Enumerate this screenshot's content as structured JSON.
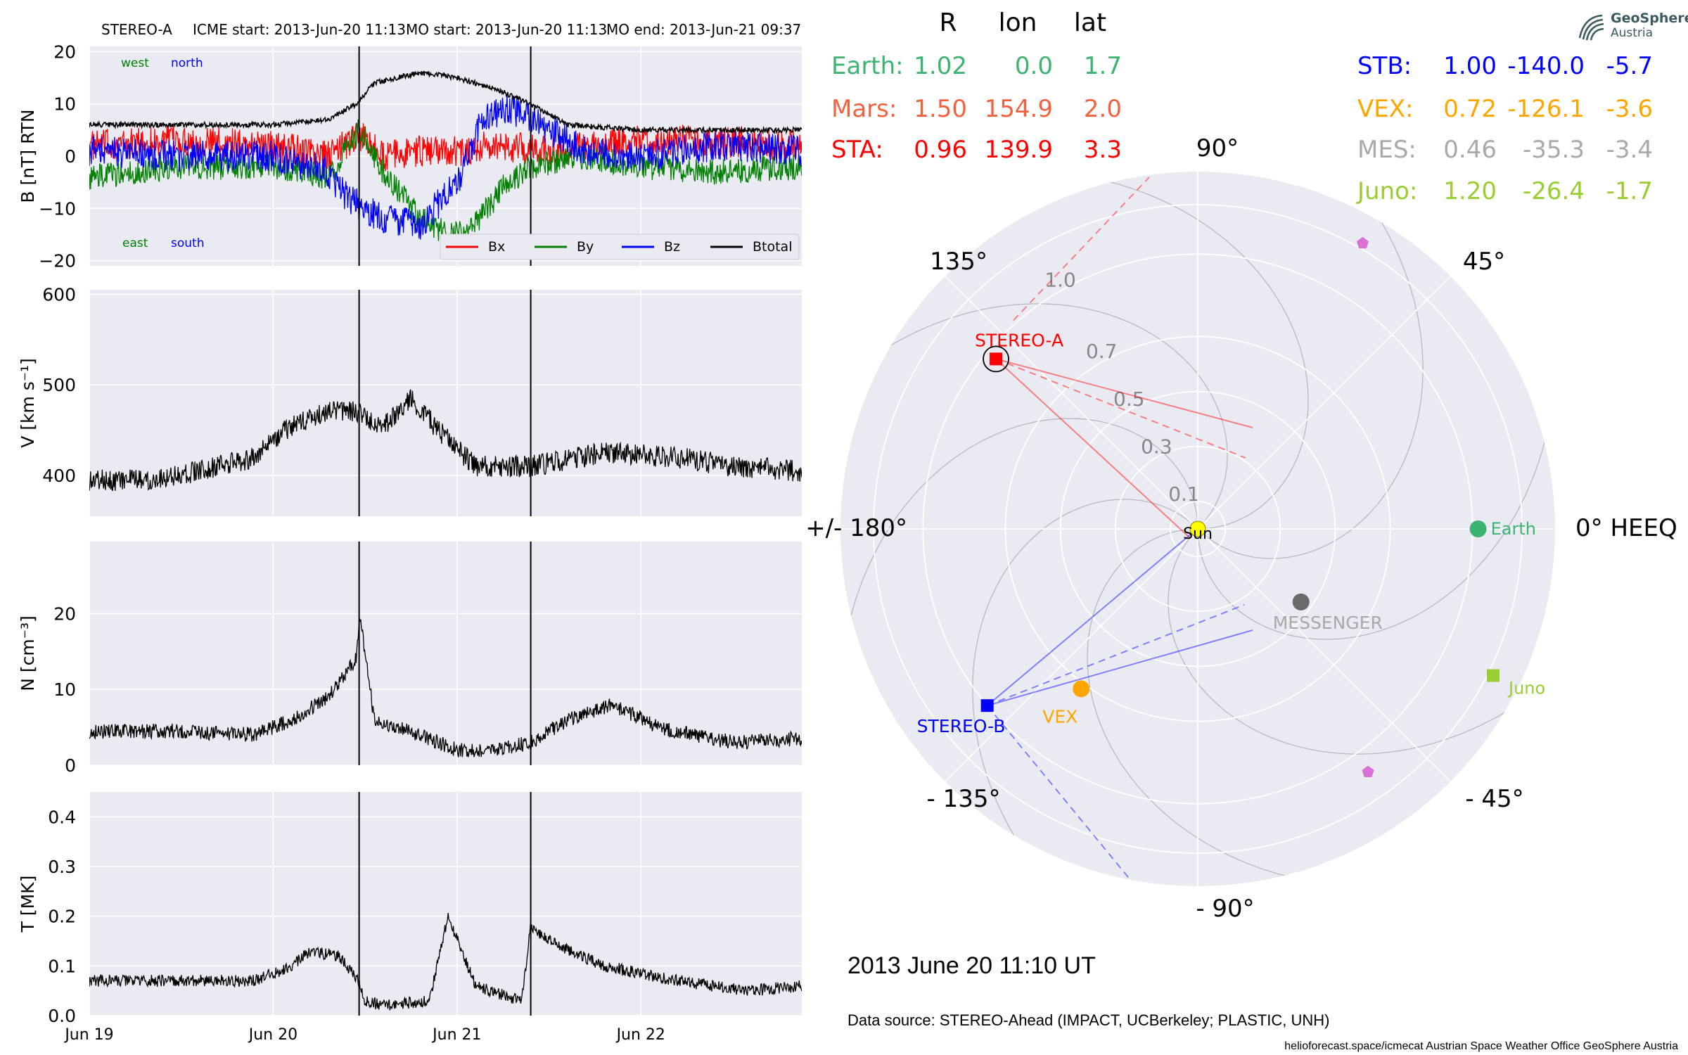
{
  "header": {
    "spacecraft": "STEREO-A",
    "icme_start": "ICME start: 2013-Jun-20 11:13",
    "mo_start": "MO start: 2013-Jun-20 11:13",
    "mo_end": "MO end: 2013-Jun-21 09:37"
  },
  "logo": {
    "line1": "GeoSphere",
    "line2": "Austria"
  },
  "positions_table": {
    "headers": [
      "R",
      "lon",
      "lat"
    ],
    "rows_left": [
      {
        "name": "Earth:",
        "r": "1.02",
        "lon": "0.0",
        "lat": "1.7",
        "color": "#3cb371"
      },
      {
        "name": "Mars:",
        "r": "1.50",
        "lon": "154.9",
        "lat": "2.0",
        "color": "#f4613f"
      },
      {
        "name": "STA:",
        "r": "0.96",
        "lon": "139.9",
        "lat": "3.3",
        "color": "#ff0000"
      }
    ],
    "rows_right": [
      {
        "name": "STB:",
        "r": "1.00",
        "lon": "-140.0",
        "lat": "-5.7",
        "color": "#0000ff"
      },
      {
        "name": "VEX:",
        "r": "0.72",
        "lon": "-126.1",
        "lat": "-3.6",
        "color": "#ffa500"
      },
      {
        "name": "MES:",
        "r": "0.46",
        "lon": "-35.3",
        "lat": "-3.4",
        "color": "#a9a9a9"
      },
      {
        "name": "Juno:",
        "r": "1.20",
        "lon": "-26.4",
        "lat": "-1.7",
        "color": "#9acd32"
      }
    ]
  },
  "date_label": "2013 June 20  11:10 UT",
  "data_source": "Data source: STEREO-Ahead (IMPACT, UCBerkeley; PLASTIC, UNH)",
  "footer": "helioforecast.space/icmecat   Austrian Space Weather Office   GeoSphere Austria",
  "colors": {
    "panel_bg": "#eaeaf2",
    "grid": "#ffffff",
    "bx": "#ff0000",
    "by": "#008000",
    "bz": "#0000ff",
    "btotal": "#000000",
    "sta": "#ff0000",
    "stb": "#0000ff",
    "earth": "#3cb371",
    "vex": "#ffa500",
    "mes": "#696969",
    "juno": "#9acd32",
    "sun": "#ffff00",
    "pentagon": "#da70d6"
  },
  "chart_data": [
    {
      "type": "line",
      "panel": "B",
      "ylabel": "B [nT] RTN",
      "ylim": [
        -21,
        21
      ],
      "yticks": [
        "20",
        "10",
        "0",
        "−10",
        "−20"
      ],
      "ytick_values": [
        20,
        10,
        0,
        -10,
        -20
      ],
      "x_range_days": [
        "2013-06-19 00:00",
        "2013-06-22 21:00"
      ],
      "xticks": [
        "Jun 19",
        "Jun 20",
        "Jun 21",
        "Jun 22"
      ],
      "corner_labels": {
        "top_left": [
          "west",
          "north"
        ],
        "bottom_left": [
          "east",
          "south"
        ]
      },
      "legend": [
        "Bx",
        "By",
        "Bz",
        "Btotal"
      ],
      "event_markers": [
        "2013-06-20 11:13",
        "2013-06-21 09:37"
      ],
      "series": [
        {
          "name": "Bx",
          "x": [
            0,
            0.5,
            1.0,
            1.3,
            1.47,
            1.6,
            1.8,
            2.0,
            2.2,
            2.5,
            2.9,
            3.3,
            3.87
          ],
          "values": [
            2,
            3,
            2,
            0,
            4,
            0,
            1,
            1,
            2,
            1,
            3,
            3,
            2
          ]
        },
        {
          "name": "By",
          "x": [
            0,
            0.5,
            1.0,
            1.3,
            1.47,
            1.6,
            1.8,
            1.95,
            2.1,
            2.25,
            2.4,
            2.7,
            3.0,
            3.4,
            3.87
          ],
          "values": [
            -4,
            -2,
            -2,
            -4,
            5,
            -3,
            -12,
            -15,
            -13,
            -6,
            -2,
            0,
            -2,
            -3,
            -2
          ]
        },
        {
          "name": "Bz",
          "x": [
            0,
            0.5,
            1.0,
            1.3,
            1.4,
            1.6,
            1.8,
            2.0,
            2.15,
            2.3,
            2.45,
            2.7,
            3.0,
            3.4,
            3.87
          ],
          "values": [
            1,
            0,
            0,
            -3,
            -8,
            -12,
            -13,
            -5,
            8,
            9,
            6,
            1,
            0,
            2,
            1
          ]
        },
        {
          "name": "Btotal",
          "x": [
            0,
            0.5,
            1.0,
            1.3,
            1.45,
            1.55,
            1.8,
            2.0,
            2.2,
            2.4,
            2.6,
            3.0,
            3.4,
            3.87
          ],
          "values": [
            6,
            6,
            6,
            7,
            10,
            14,
            16,
            15,
            13,
            10,
            6,
            5,
            5,
            5
          ]
        }
      ]
    },
    {
      "type": "line",
      "panel": "V",
      "ylabel": "V [km s⁻¹]",
      "ylim": [
        355,
        605
      ],
      "yticks": [
        "600",
        "500",
        "400"
      ],
      "ytick_values": [
        600,
        500,
        400
      ],
      "xticks": [
        "Jun 19",
        "Jun 20",
        "Jun 21",
        "Jun 22"
      ],
      "event_markers": [
        "2013-06-20 11:13",
        "2013-06-21 09:37"
      ],
      "series": [
        {
          "name": "V",
          "x": [
            0,
            0.3,
            0.6,
            0.9,
            1.0,
            1.1,
            1.3,
            1.45,
            1.6,
            1.75,
            1.9,
            2.1,
            2.4,
            2.8,
            3.2,
            3.5,
            3.87
          ],
          "values": [
            395,
            395,
            405,
            420,
            440,
            455,
            470,
            470,
            455,
            485,
            450,
            410,
            410,
            425,
            420,
            410,
            405
          ]
        }
      ]
    },
    {
      "type": "line",
      "panel": "N",
      "ylabel": "N [cm⁻³]",
      "ylim": [
        0,
        29.5
      ],
      "yticks": [
        "20",
        "10",
        "0"
      ],
      "ytick_values": [
        20,
        10,
        0
      ],
      "xticks": [
        "Jun 19",
        "Jun 20",
        "Jun 21",
        "Jun 22"
      ],
      "event_markers": [
        "2013-06-20 11:13",
        "2013-06-21 09:37"
      ],
      "series": [
        {
          "name": "N",
          "x": [
            0,
            0.5,
            0.9,
            1.1,
            1.3,
            1.45,
            1.47,
            1.55,
            1.8,
            2.0,
            2.2,
            2.4,
            2.6,
            2.85,
            3.1,
            3.5,
            3.87
          ],
          "values": [
            4.5,
            4.5,
            4,
            6,
            9,
            14,
            20,
            6,
            4,
            2,
            2,
            3,
            6,
            8,
            5,
            3,
            3.5
          ]
        }
      ]
    },
    {
      "type": "line",
      "panel": "T",
      "ylabel": "T [MK]",
      "ylim": [
        0,
        0.45
      ],
      "yticks": [
        "0.4",
        "0.3",
        "0.2",
        "0.1",
        "0.0"
      ],
      "ytick_values": [
        0.4,
        0.3,
        0.2,
        0.1,
        0.0
      ],
      "xticks": [
        "Jun 19",
        "Jun 20",
        "Jun 21",
        "Jun 22"
      ],
      "event_markers": [
        "2013-06-20 11:13",
        "2013-06-21 09:37"
      ],
      "series": [
        {
          "name": "T",
          "x": [
            0,
            0.5,
            0.9,
            1.1,
            1.2,
            1.35,
            1.45,
            1.5,
            1.6,
            1.85,
            1.95,
            2.1,
            2.35,
            2.4,
            2.5,
            2.8,
            3.2,
            3.6,
            3.87
          ],
          "values": [
            0.07,
            0.07,
            0.07,
            0.1,
            0.13,
            0.12,
            0.08,
            0.03,
            0.02,
            0.03,
            0.2,
            0.06,
            0.03,
            0.18,
            0.15,
            0.1,
            0.07,
            0.05,
            0.06
          ]
        }
      ]
    },
    {
      "type": "scatter",
      "panel": "polar",
      "projection": "polar",
      "r_max": 1.3,
      "rgrid": [
        "0.1",
        "0.3",
        "0.5",
        "0.7",
        "1.0"
      ],
      "rgrid_values": [
        0.1,
        0.3,
        0.5,
        0.7,
        1.0
      ],
      "angle_labels": [
        {
          "deg": 0,
          "text": "0° HEEQ"
        },
        {
          "deg": 45,
          "text": "45°"
        },
        {
          "deg": 90,
          "text": "90°"
        },
        {
          "deg": 135,
          "text": "135°"
        },
        {
          "deg": 180,
          "text": "+/- 180°"
        },
        {
          "deg": -135,
          "text": "- 135°"
        },
        {
          "deg": -90,
          "text": "- 90°"
        },
        {
          "deg": -45,
          "text": "- 45°"
        }
      ],
      "points": [
        {
          "name": "Sun",
          "r": 0,
          "lon": 0,
          "marker": "circle",
          "color": "#ffff00",
          "label": "Sun"
        },
        {
          "name": "Earth",
          "r": 1.02,
          "lon": 0.0,
          "marker": "circle",
          "color": "#3cb371",
          "label": "Earth"
        },
        {
          "name": "STEREO-A",
          "r": 0.96,
          "lon": 139.9,
          "marker": "square",
          "color": "#ff0000",
          "label": "STEREO-A"
        },
        {
          "name": "STEREO-B",
          "r": 1.0,
          "lon": -140.0,
          "marker": "square",
          "color": "#0000ff",
          "label": "STEREO-B"
        },
        {
          "name": "VEX",
          "r": 0.72,
          "lon": -126.1,
          "marker": "circle",
          "color": "#ffa500",
          "label": "VEX"
        },
        {
          "name": "MESSENGER",
          "r": 0.46,
          "lon": -35.3,
          "marker": "circle",
          "color": "#696969",
          "label": "MESSENGER"
        },
        {
          "name": "Juno",
          "r": 1.2,
          "lon": -26.4,
          "marker": "square",
          "color": "#9acd32",
          "label": "Juno"
        },
        {
          "name": "pentagon-north",
          "r": 1.2,
          "lon": 60,
          "marker": "pentagon",
          "color": "#da70d6",
          "label": ""
        },
        {
          "name": "pentagon-south",
          "r": 1.08,
          "lon": -55,
          "marker": "pentagon",
          "color": "#da70d6",
          "label": ""
        }
      ]
    }
  ]
}
